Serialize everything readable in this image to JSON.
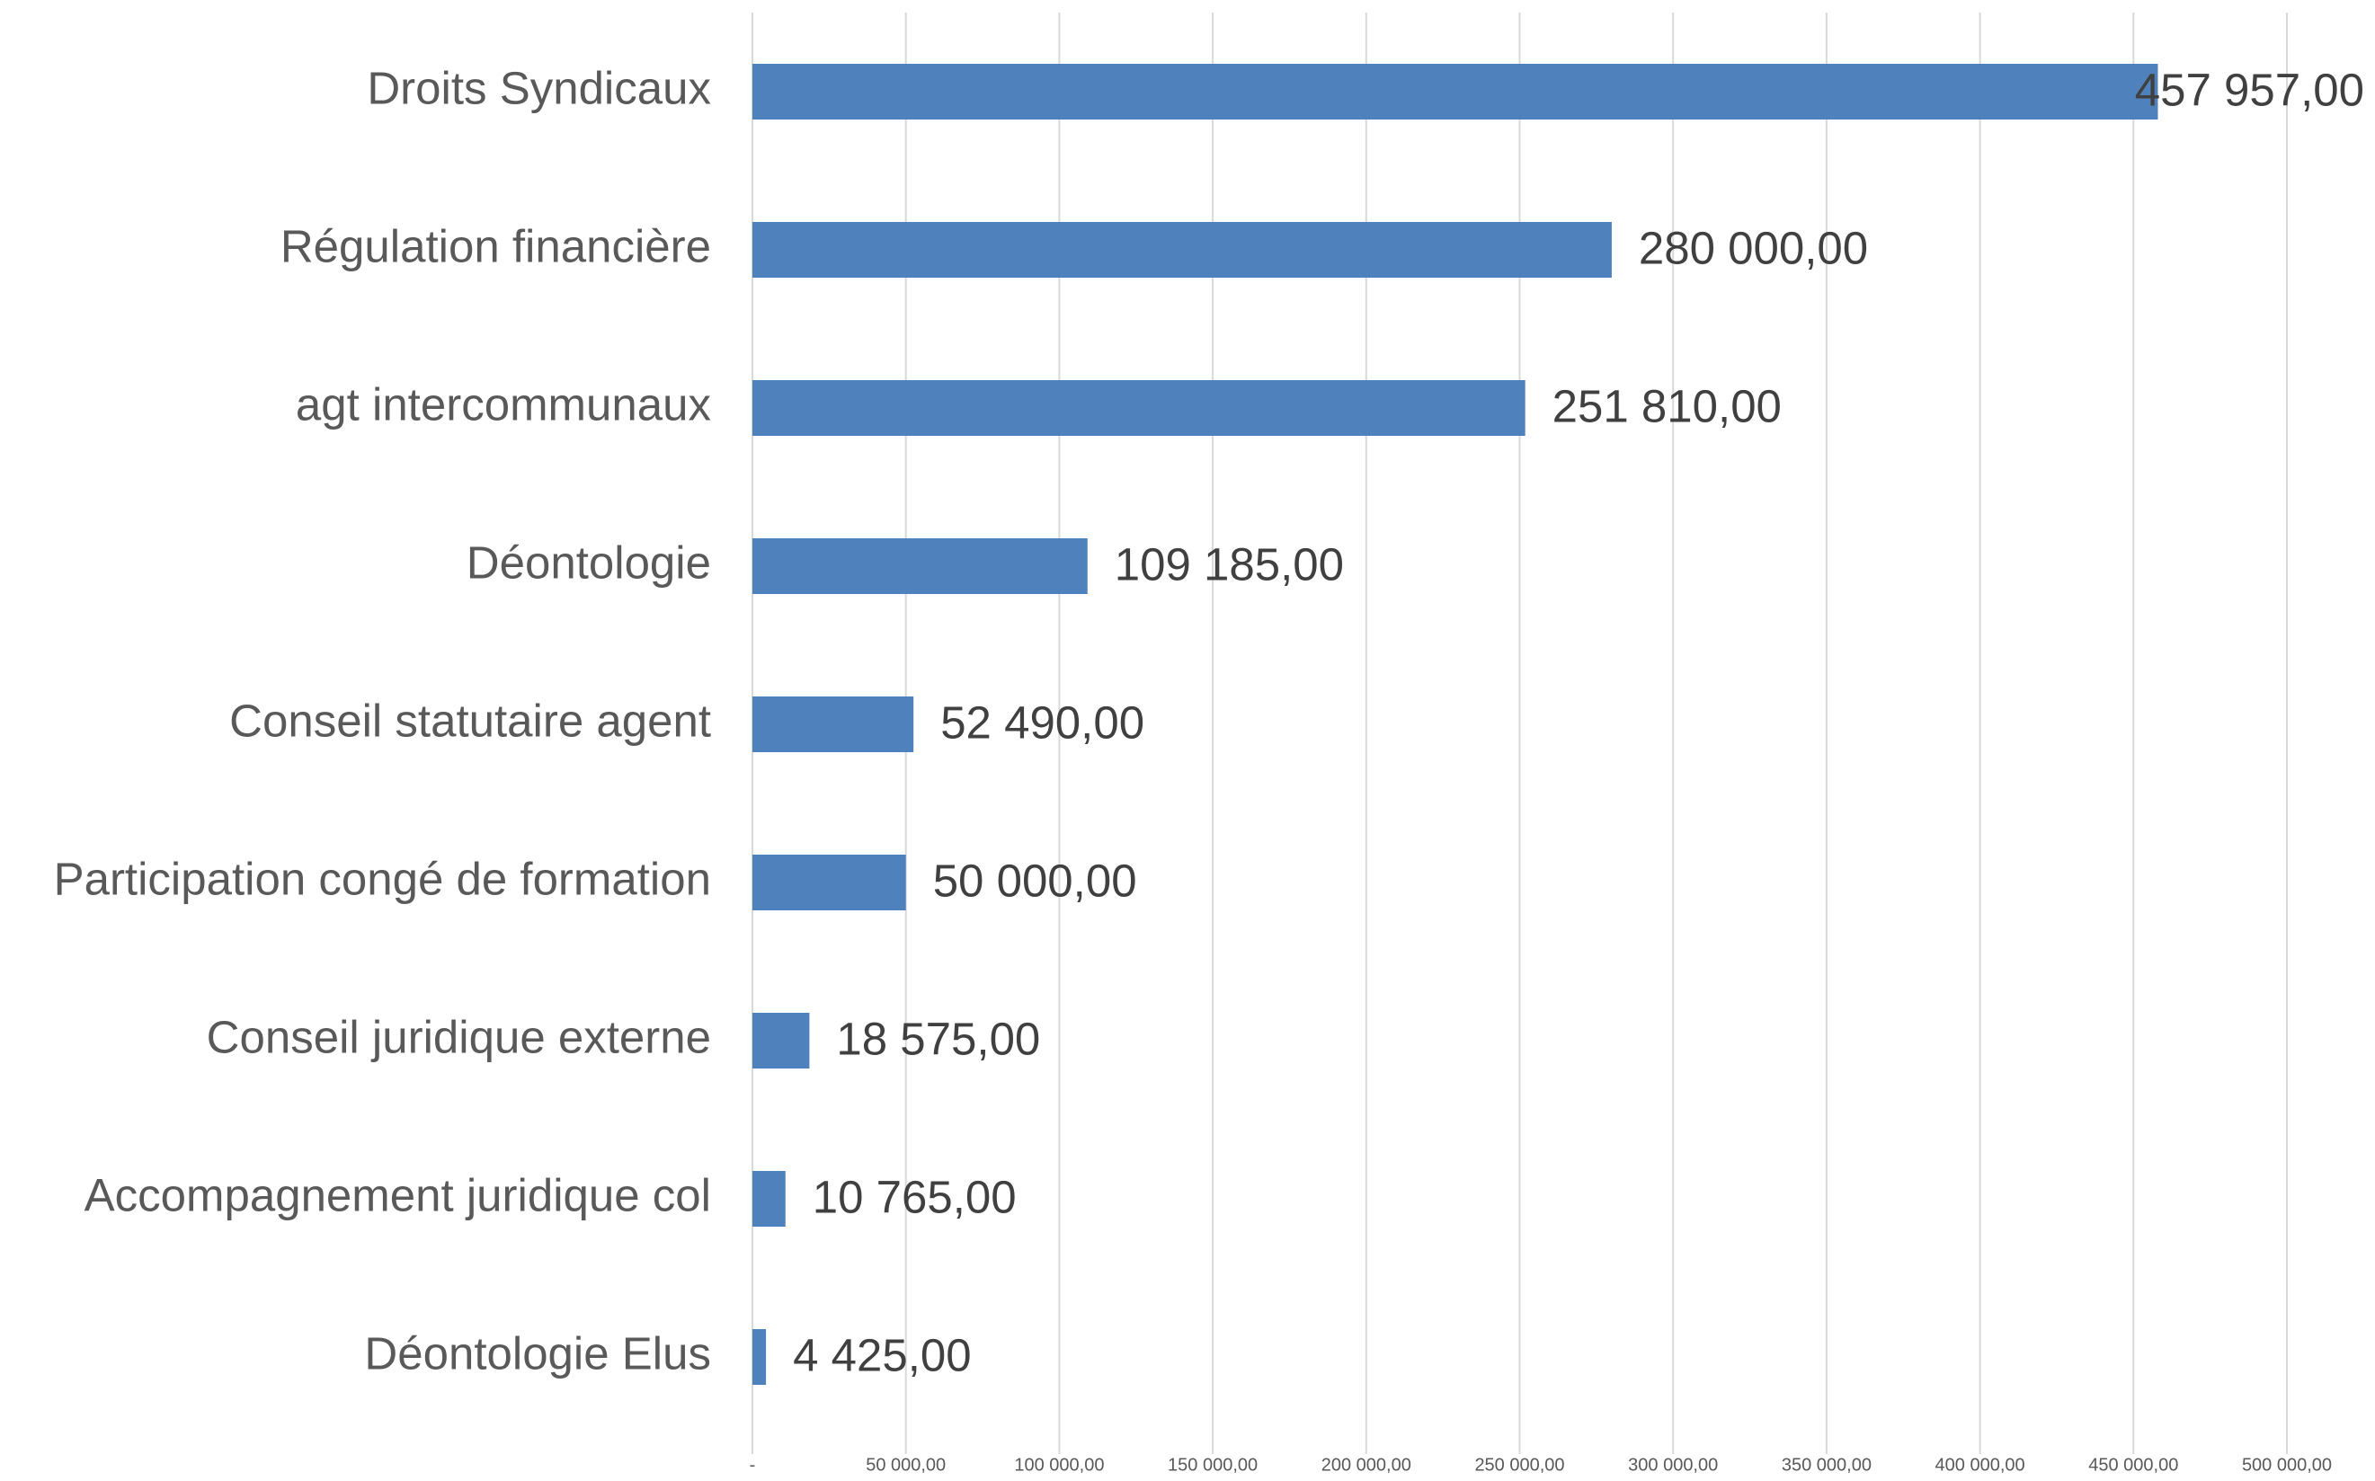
{
  "chart_data": {
    "type": "bar",
    "orientation": "horizontal",
    "categories": [
      "Droits Syndicaux",
      "Régulation financière",
      "agt intercommunaux",
      "Déontologie",
      "Conseil statutaire agent",
      "Participation congé de formation",
      "Conseil juridique externe",
      "Accompagnement juridique col",
      "Déontologie Elus"
    ],
    "values": [
      457957,
      280000,
      251810,
      109185,
      52490,
      50000,
      18575,
      10765,
      4425
    ],
    "value_labels": [
      "457 957,00",
      "280 000,00",
      "251 810,00",
      "109 185,00",
      "52 490,00",
      "50 000,00",
      "18 575,00",
      "10 765,00",
      "4 425,00"
    ],
    "color": "#4f81bd",
    "xlim": [
      0,
      500000
    ],
    "xticks": [
      {
        "value": 0,
        "label": "-"
      },
      {
        "value": 50000,
        "label": "50 000,00"
      },
      {
        "value": 100000,
        "label": "100 000,00"
      },
      {
        "value": 150000,
        "label": "150 000,00"
      },
      {
        "value": 200000,
        "label": "200 000,00"
      },
      {
        "value": 250000,
        "label": "250 000,00"
      },
      {
        "value": 300000,
        "label": "300 000,00"
      },
      {
        "value": 350000,
        "label": "350 000,00"
      },
      {
        "value": 400000,
        "label": "400 000,00"
      },
      {
        "value": 450000,
        "label": "450 000,00"
      },
      {
        "value": 500000,
        "label": "500 000,00"
      }
    ],
    "grid": true
  }
}
